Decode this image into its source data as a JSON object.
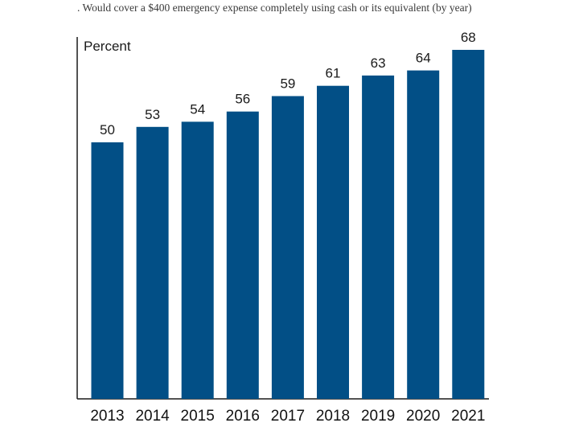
{
  "chart_data": {
    "type": "bar",
    "title": ". Would cover a $400 emergency expense completely using cash or its equivalent (by year)",
    "ylabel": "Percent",
    "xlabel": "",
    "categories": [
      "2013",
      "2014",
      "2015",
      "2016",
      "2017",
      "2018",
      "2019",
      "2020",
      "2021"
    ],
    "values": [
      50,
      53,
      54,
      56,
      59,
      61,
      63,
      64,
      68
    ],
    "ylim": [
      0,
      70
    ],
    "grid": false,
    "bar_color": "#024F86",
    "axis_color": "#1a1a1a"
  }
}
